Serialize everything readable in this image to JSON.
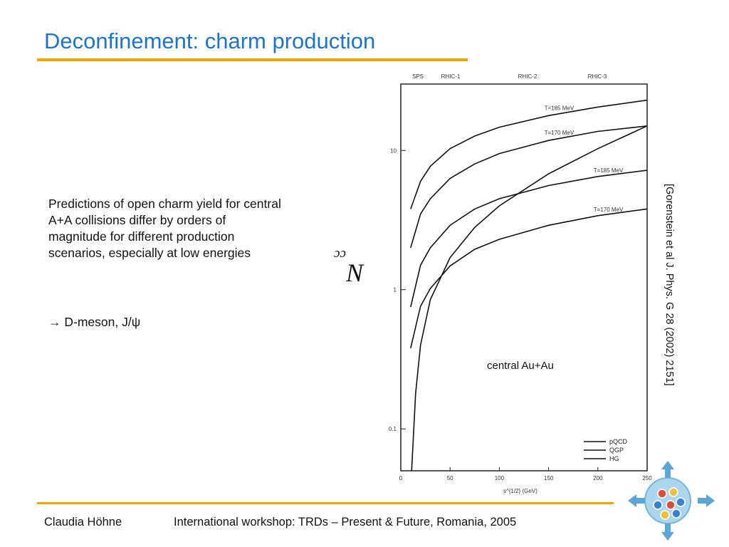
{
  "slide": {
    "title": "Deconfinement: charm production",
    "description": "Predictions of open charm yield for central A+A collisions differ by orders of magnitude for different production scenarios, especially at low energies",
    "bullet": "→ D-meson, J/ψ",
    "citation": "[Gorenstein et al J. Phys. G 28 (2002) 2151]",
    "footer_author": "Claudia Höhne",
    "footer_event": "International workshop: TRDs – Present & Future, Romania, 2005",
    "accent_color": "#1a75d2",
    "rule_color": "#f5a400"
  },
  "chart_data": {
    "type": "line",
    "title": "",
    "xlabel": "s^{1/2} (GeV)",
    "ylabel": "N_cc̄",
    "ylog": true,
    "xlim": [
      0,
      250
    ],
    "ylim": [
      0.05,
      30
    ],
    "x_ticks": [
      "0",
      "50",
      "100",
      "150",
      "200",
      "250"
    ],
    "y_ticks": [
      "0.1",
      "1",
      "10"
    ],
    "top_axis_labels": [
      "SPS",
      "RHIC-1",
      "RHIC-2",
      "RHIC-3"
    ],
    "annotation": "central Au+Au",
    "curve_labels": [
      "T=185 MeV",
      "T=170 MeV",
      "T=185 MeV",
      "T=170 MeV"
    ],
    "legend": [
      "pQCD",
      "QGP",
      "HG"
    ],
    "legend_placement": "bottom-right",
    "series": [
      {
        "label": "T=185 MeV",
        "x": [
          10,
          20,
          30,
          50,
          75,
          100,
          150,
          200,
          250
        ],
        "y": [
          3.8,
          6.0,
          7.7,
          10.3,
          12.7,
          14.7,
          17.8,
          20.5,
          23
        ]
      },
      {
        "label": "T=170 MeV",
        "x": [
          10,
          20,
          30,
          50,
          75,
          100,
          150,
          200,
          250
        ],
        "y": [
          2.0,
          3.5,
          4.5,
          6.3,
          8.0,
          9.5,
          11.8,
          13.7,
          15
        ]
      },
      {
        "label": "T=185 MeV",
        "x": [
          10,
          20,
          30,
          50,
          75,
          100,
          150,
          200,
          250
        ],
        "y": [
          0.75,
          1.5,
          2.0,
          2.9,
          3.8,
          4.5,
          5.6,
          6.5,
          7.2
        ]
      },
      {
        "label": "T=170 MeV",
        "x": [
          10,
          20,
          30,
          50,
          75,
          100,
          150,
          200,
          250
        ],
        "y": [
          0.38,
          0.76,
          1.02,
          1.48,
          1.95,
          2.3,
          2.9,
          3.4,
          3.8
        ]
      },
      {
        "x": [
          11,
          15,
          20,
          30,
          40,
          50,
          75,
          100,
          150,
          200,
          250
        ],
        "y": [
          0.05,
          0.18,
          0.4,
          0.85,
          1.2,
          1.7,
          2.8,
          4.0,
          6.8,
          10.3,
          15
        ]
      }
    ]
  }
}
